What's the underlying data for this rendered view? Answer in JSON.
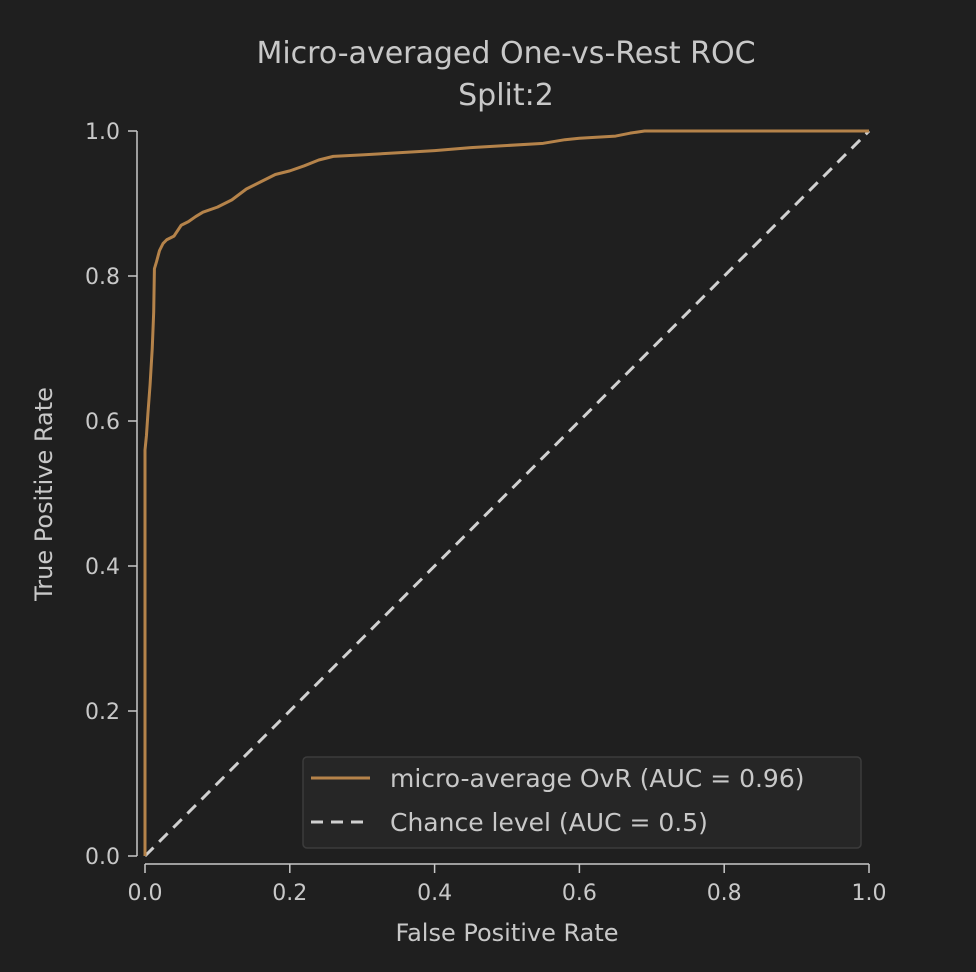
{
  "chart_data": {
    "type": "line",
    "title": "Micro-averaged One-vs-Rest ROC",
    "subtitle": "Split:2",
    "xlabel": "False Positive Rate",
    "ylabel": "True Positive Rate",
    "xlim": [
      0.0,
      1.0
    ],
    "ylim": [
      0.0,
      1.0
    ],
    "x_ticks": [
      "0.0",
      "0.2",
      "0.4",
      "0.6",
      "0.8",
      "1.0"
    ],
    "y_ticks": [
      "0.0",
      "0.2",
      "0.4",
      "0.6",
      "0.8",
      "1.0"
    ],
    "grid": false,
    "legend_position": "lower-right",
    "series": [
      {
        "name": "micro-average OvR (AUC = 0.96)",
        "color": "#b5834a",
        "style": "solid",
        "x": [
          0.0,
          0.0,
          0.002,
          0.004,
          0.007,
          0.01,
          0.012,
          0.013,
          0.016,
          0.02,
          0.025,
          0.03,
          0.04,
          0.05,
          0.06,
          0.07,
          0.08,
          0.1,
          0.12,
          0.14,
          0.16,
          0.18,
          0.2,
          0.22,
          0.24,
          0.26,
          0.3,
          0.35,
          0.4,
          0.45,
          0.5,
          0.55,
          0.58,
          0.6,
          0.65,
          0.67,
          0.69,
          0.7,
          0.8,
          0.9,
          1.0
        ],
        "y": [
          0.0,
          0.56,
          0.58,
          0.61,
          0.65,
          0.7,
          0.75,
          0.81,
          0.82,
          0.835,
          0.845,
          0.85,
          0.855,
          0.87,
          0.875,
          0.882,
          0.888,
          0.895,
          0.905,
          0.92,
          0.93,
          0.94,
          0.945,
          0.952,
          0.96,
          0.965,
          0.967,
          0.97,
          0.973,
          0.977,
          0.98,
          0.983,
          0.988,
          0.99,
          0.993,
          0.997,
          1.0,
          1.0,
          1.0,
          1.0,
          1.0
        ]
      },
      {
        "name": "Chance level (AUC = 0.5)",
        "color": "#d0d0d0",
        "style": "dashed",
        "x": [
          0.0,
          1.0
        ],
        "y": [
          0.0,
          1.0
        ]
      }
    ]
  }
}
